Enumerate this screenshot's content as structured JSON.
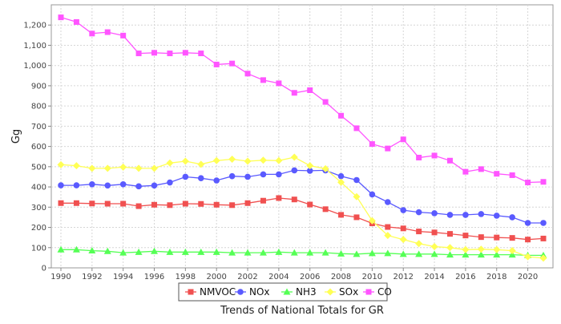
{
  "chart_data": {
    "type": "line",
    "title": "",
    "xlabel": "Trends of National Totals for GR",
    "ylabel": "Gg",
    "xlim": [
      1990,
      2021
    ],
    "ylim": [
      0,
      1300
    ],
    "grid": true,
    "legend_placement": "bottom",
    "x": [
      1990,
      1991,
      1992,
      1993,
      1994,
      1995,
      1996,
      1997,
      1998,
      1999,
      2000,
      2001,
      2002,
      2003,
      2004,
      2005,
      2006,
      2007,
      2008,
      2009,
      2010,
      2011,
      2012,
      2013,
      2014,
      2015,
      2016,
      2017,
      2018,
      2019,
      2020,
      2021
    ],
    "x_tick_labels": [
      "1990",
      "1992",
      "1994",
      "1996",
      "1998",
      "2000",
      "2002",
      "2004",
      "2006",
      "2008",
      "2010",
      "2012",
      "2014",
      "2016",
      "2018",
      "2020"
    ],
    "y_tick_labels": [
      "0",
      "100",
      "200",
      "300",
      "400",
      "500",
      "600",
      "700",
      "800",
      "900",
      "1,000",
      "1,100",
      "1,200"
    ],
    "series": [
      {
        "name": "NMVOC",
        "color": "#f05050",
        "marker": "square",
        "values": [
          320,
          320,
          318,
          317,
          317,
          305,
          312,
          310,
          317,
          316,
          312,
          310,
          320,
          332,
          345,
          338,
          313,
          290,
          262,
          250,
          220,
          202,
          195,
          180,
          175,
          168,
          160,
          152,
          150,
          148,
          140,
          145
        ]
      },
      {
        "name": "NOx",
        "color": "#5a5aff",
        "marker": "circle",
        "values": [
          408,
          408,
          413,
          407,
          413,
          403,
          407,
          422,
          450,
          443,
          432,
          453,
          450,
          462,
          462,
          482,
          480,
          482,
          453,
          434,
          363,
          325,
          285,
          275,
          270,
          262,
          262,
          266,
          258,
          250,
          222,
          222
        ]
      },
      {
        "name": "NH3",
        "color": "#55ff55",
        "marker": "triangle",
        "values": [
          90,
          90,
          85,
          82,
          75,
          78,
          82,
          78,
          78,
          78,
          78,
          75,
          75,
          75,
          78,
          75,
          75,
          75,
          70,
          68,
          72,
          72,
          68,
          68,
          68,
          65,
          65,
          65,
          65,
          65,
          62,
          62
        ]
      },
      {
        "name": "SOx",
        "color": "#ffff55",
        "marker": "diamond",
        "values": [
          510,
          505,
          492,
          492,
          498,
          492,
          492,
          518,
          527,
          512,
          530,
          537,
          527,
          532,
          530,
          547,
          505,
          490,
          423,
          352,
          233,
          160,
          140,
          120,
          105,
          100,
          90,
          92,
          90,
          85,
          55,
          48
        ]
      },
      {
        "name": "CO",
        "color": "#ff55ff",
        "marker": "square",
        "values": [
          1238,
          1215,
          1158,
          1165,
          1148,
          1060,
          1063,
          1060,
          1063,
          1060,
          1005,
          1010,
          960,
          928,
          912,
          865,
          878,
          820,
          752,
          690,
          612,
          590,
          635,
          545,
          555,
          530,
          475,
          488,
          465,
          458,
          422,
          425
        ]
      }
    ]
  }
}
